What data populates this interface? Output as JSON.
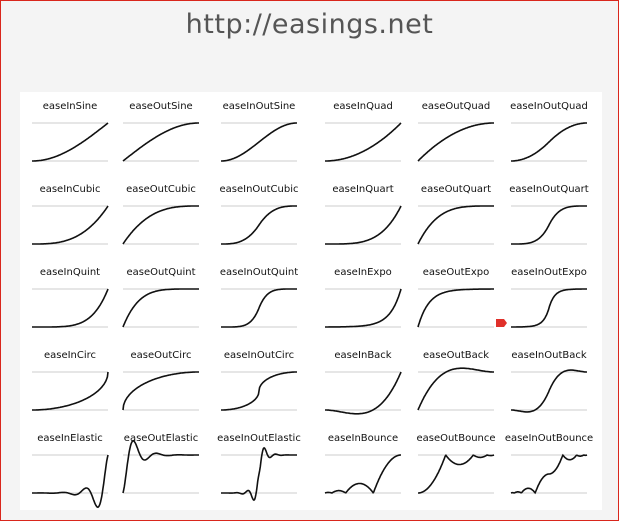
{
  "header": {
    "title": "http://easings.net"
  },
  "items": [
    "easeInSine",
    "easeOutSine",
    "easeInOutSine",
    "easeInQuad",
    "easeOutQuad",
    "easeInOutQuad",
    "easeInCubic",
    "easeOutCubic",
    "easeInOutCubic",
    "easeInQuart",
    "easeOutQuart",
    "easeInOutQuart",
    "easeInQuint",
    "easeOutQuint",
    "easeInOutQuint",
    "easeInExpo",
    "easeOutExpo",
    "easeInOutExpo",
    "easeInCirc",
    "easeOutCirc",
    "easeInOutCirc",
    "easeInBack",
    "easeOutBack",
    "easeInOutBack",
    "easeInElastic",
    "easeOutElastic",
    "easeInOutElastic",
    "easeInBounce",
    "easeOutBounce",
    "easeInOutBounce"
  ]
}
